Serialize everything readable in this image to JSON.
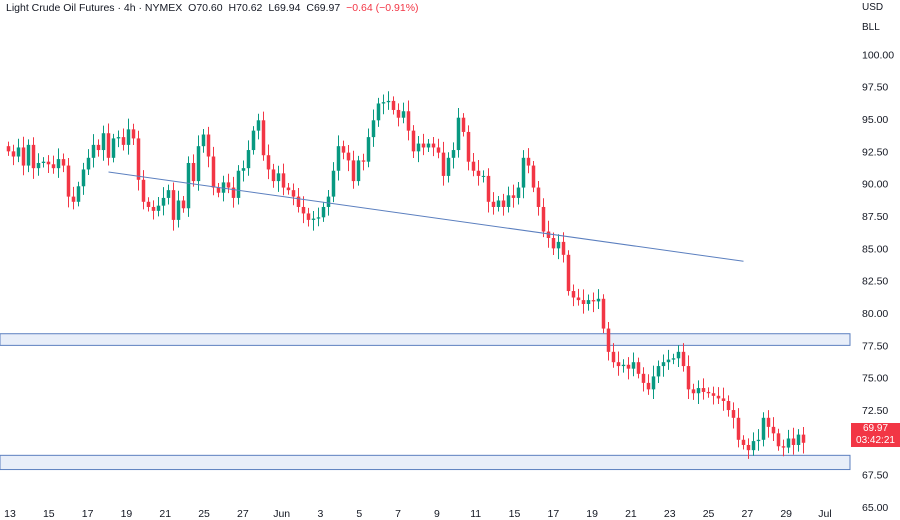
{
  "header": {
    "symbol": "Light Crude Oil Futures · 4h · NYMEX",
    "open": "O70.60",
    "high": "H70.62",
    "low": "L69.94",
    "close": "C69.97",
    "change": "−0.64 (−0.91%)"
  },
  "axis": {
    "currency": "USD",
    "unit": "BLL"
  },
  "last_price": {
    "value": "69.97",
    "countdown": "03:42:21"
  },
  "colors": {
    "up": "#089981",
    "down": "#f23645",
    "trend": "#5b7fbf",
    "zone_fill": "#e8eef9",
    "zone_edge": "#5b7fbf"
  },
  "chart_data": {
    "type": "candlestick",
    "yticks": [
      "100.00",
      "97.50",
      "95.00",
      "92.50",
      "90.00",
      "87.50",
      "85.00",
      "82.50",
      "80.00",
      "77.50",
      "75.00",
      "72.50",
      "70.00",
      "67.50",
      "65.00"
    ],
    "ylim": [
      64.0,
      104.2
    ],
    "xticks": [
      "13",
      "15",
      "17",
      "19",
      "21",
      "25",
      "27",
      "Jun",
      "3",
      "5",
      "7",
      "9",
      "11",
      "15",
      "17",
      "19",
      "21",
      "23",
      "25",
      "27",
      "29",
      "Jul"
    ],
    "zones": [
      {
        "low": 77.5,
        "high": 78.4
      },
      {
        "low": 67.9,
        "high": 69.0
      }
    ],
    "trendline": {
      "from_bar": 20,
      "from_price": 90.9,
      "to_bar": 147,
      "to_price": 84.0
    },
    "closes": [
      92.5,
      92.1,
      92.8,
      91.4,
      93.0,
      91.2,
      91.6,
      91.7,
      91.5,
      91.2,
      91.9,
      91.4,
      89.0,
      88.6,
      89.8,
      91.1,
      92.0,
      93.0,
      92.6,
      93.9,
      92.0,
      93.5,
      93.6,
      93.0,
      94.2,
      93.5,
      90.3,
      88.6,
      88.2,
      87.9,
      88.3,
      88.9,
      89.5,
      87.2,
      88.7,
      88.1,
      91.6,
      90.2,
      92.9,
      93.8,
      92.1,
      89.7,
      89.3,
      90.1,
      89.7,
      88.9,
      91.0,
      91.2,
      92.6,
      94.1,
      94.9,
      92.2,
      91.1,
      90.2,
      90.8,
      89.7,
      89.5,
      89.0,
      88.2,
      87.7,
      87.2,
      87.3,
      87.4,
      88.2,
      89.0,
      91.0,
      92.9,
      92.4,
      91.8,
      90.2,
      91.8,
      91.7,
      93.6,
      94.9,
      96.2,
      96.3,
      96.4,
      95.7,
      95.1,
      95.6,
      94.1,
      92.5,
      93.1,
      92.8,
      93.1,
      92.8,
      92.4,
      90.6,
      92.0,
      92.6,
      95.1,
      94.0,
      91.7,
      91.0,
      90.6,
      90.6,
      88.6,
      88.2,
      88.7,
      88.2,
      89.1,
      88.9,
      89.7,
      92.0,
      91.4,
      89.7,
      88.2,
      86.3,
      85.8,
      85.0,
      85.5,
      84.5,
      81.7,
      81.2,
      81.0,
      80.7,
      81.0,
      80.9,
      81.1,
      78.8,
      77.0,
      76.2,
      75.9,
      76.0,
      75.7,
      76.2,
      75.3,
      74.6,
      74.1,
      75.1,
      75.9,
      76.2,
      76.4,
      76.5,
      77.0,
      75.9,
      74.1,
      73.8,
      74.2,
      73.9,
      73.8,
      73.6,
      73.4,
      73.2,
      72.5,
      71.9,
      70.2,
      69.8,
      69.4,
      70.1,
      70.2,
      71.9,
      71.2,
      70.7,
      69.7,
      69.6,
      70.3,
      69.8,
      70.6,
      69.97
    ]
  }
}
